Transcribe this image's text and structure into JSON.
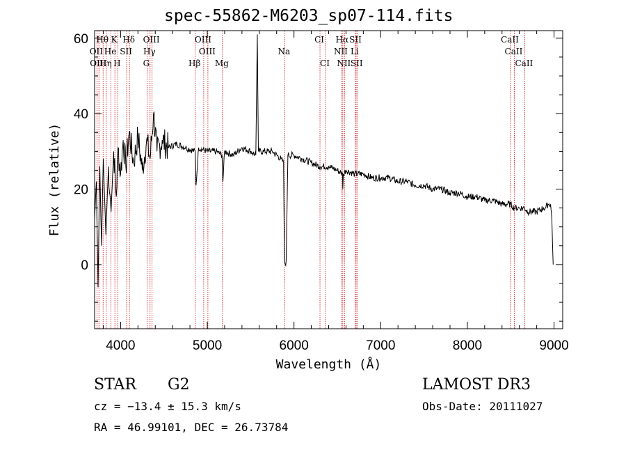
{
  "title": "spec-55862-M6203_sp07-114.fits",
  "object": {
    "class": "STAR",
    "subclass": "G2"
  },
  "survey": "LAMOST DR3",
  "redshift_text": "cz = −13.4 ± 15.3 km/s",
  "obs_date_text": "Obs-Date: 20111027",
  "coords_text": "RA =  46.99101, DEC =  26.73784",
  "chart_data": {
    "type": "line",
    "title": "spec-55862-M6203_sp07-114.fits",
    "xlabel": "Wavelength (Å)",
    "ylabel": "Flux (relative)",
    "xlim": [
      3700,
      9100
    ],
    "ylim": [
      -17,
      62
    ],
    "xticks": [
      4000,
      5000,
      6000,
      7000,
      8000,
      9000
    ],
    "yticks": [
      0,
      20,
      40,
      60
    ],
    "series": [
      {
        "name": "spectrum",
        "x": [
          3700,
          3720,
          3740,
          3760,
          3780,
          3800,
          3830,
          3860,
          3890,
          3920,
          3950,
          3970,
          4000,
          4030,
          4060,
          4100,
          4150,
          4200,
          4250,
          4300,
          4340,
          4380,
          4420,
          4480,
          4550,
          4650,
          4750,
          4860,
          4870,
          4900,
          5000,
          5100,
          5170,
          5180,
          5200,
          5300,
          5400,
          5500,
          5560,
          5577,
          5590,
          5650,
          5750,
          5850,
          5880,
          5890,
          5900,
          5910,
          5930,
          6000,
          6100,
          6200,
          6300,
          6400,
          6500,
          6560,
          6563,
          6570,
          6600,
          6700,
          6800,
          6900,
          7000,
          7100,
          7200,
          7300,
          7400,
          7500,
          7600,
          7700,
          7800,
          7900,
          8000,
          8100,
          8200,
          8300,
          8400,
          8500,
          8540,
          8600,
          8660,
          8700,
          8800,
          8880,
          8900,
          8930,
          8960,
          8975,
          8990
        ],
        "y": [
          12,
          22,
          -6,
          26,
          5,
          28,
          8,
          26,
          14,
          30,
          18,
          31,
          24,
          33,
          26,
          35,
          27,
          34,
          25,
          33,
          28,
          40,
          30,
          33,
          31,
          32,
          31,
          30,
          21,
          31,
          30,
          30,
          29,
          22,
          30,
          29,
          31,
          30,
          29,
          61,
          30,
          30,
          30,
          28,
          27,
          1,
          0,
          1,
          29,
          29,
          28,
          27,
          26,
          26,
          25,
          24,
          20,
          24,
          25,
          24,
          24,
          23,
          23,
          23,
          22,
          22,
          21,
          21,
          20,
          20,
          19,
          19,
          18,
          18,
          17,
          17,
          16,
          16,
          15,
          15,
          15,
          14,
          14,
          15,
          15,
          16,
          16,
          12,
          0
        ]
      }
    ],
    "lines": [
      {
        "label": "Hθ",
        "x": 3798,
        "row": 1
      },
      {
        "label": "K",
        "x": 3934,
        "row": 1
      },
      {
        "label": "Hδ",
        "x": 4102,
        "row": 1
      },
      {
        "label": "OIII",
        "x": 4363,
        "row": 1
      },
      {
        "label": "OIII",
        "x": 4959,
        "row": 1
      },
      {
        "label": "CI",
        "x": 6300,
        "row": 1
      },
      {
        "label": "Hα",
        "x": 6563,
        "row": 1
      },
      {
        "label": "SII",
        "x": 6717,
        "row": 1
      },
      {
        "label": "CaII",
        "x": 8498,
        "row": 1
      },
      {
        "label": "OII",
        "x": 3727,
        "row": 2
      },
      {
        "label": "He",
        "x": 3889,
        "row": 2
      },
      {
        "label": "SII",
        "x": 4070,
        "row": 2
      },
      {
        "label": "Hγ",
        "x": 4340,
        "row": 2
      },
      {
        "label": "OIII",
        "x": 5007,
        "row": 2
      },
      {
        "label": "Na",
        "x": 5893,
        "row": 2
      },
      {
        "label": "NII",
        "x": 6548,
        "row": 2
      },
      {
        "label": "Li",
        "x": 6708,
        "row": 2
      },
      {
        "label": "CaII",
        "x": 8542,
        "row": 2
      },
      {
        "label": "OIII",
        "x": 3750,
        "row": 3
      },
      {
        "label": "Hη",
        "x": 3835,
        "row": 3
      },
      {
        "label": "H",
        "x": 3968,
        "row": 3
      },
      {
        "label": "G",
        "x": 4305,
        "row": 3
      },
      {
        "label": "Hβ",
        "x": 4861,
        "row": 3
      },
      {
        "label": "Mg",
        "x": 5175,
        "row": 3
      },
      {
        "label": "CI",
        "x": 6364,
        "row": 3
      },
      {
        "label": "NII",
        "x": 6583,
        "row": 3
      },
      {
        "label": "SII",
        "x": 6731,
        "row": 3
      },
      {
        "label": "CaII",
        "x": 8662,
        "row": 3
      }
    ]
  }
}
